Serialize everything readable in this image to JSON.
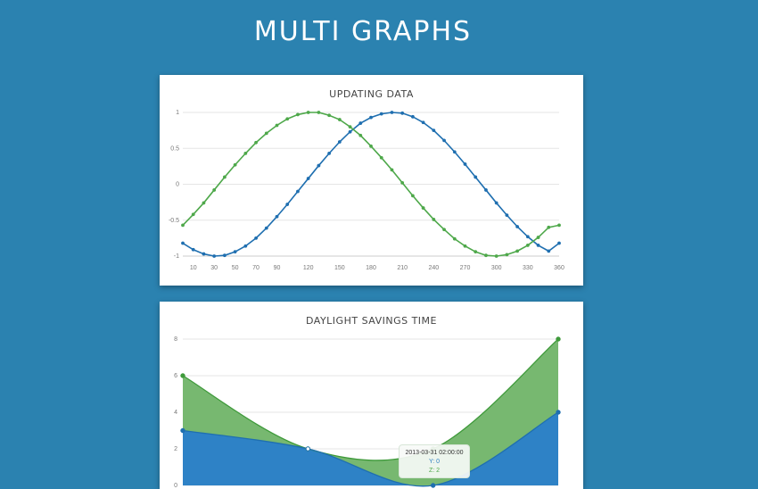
{
  "page": {
    "title": "MULTI GRAPHS"
  },
  "colors": {
    "background": "#2b82b0",
    "blue": "#1f6fb0",
    "green": "#4ea84a",
    "area_blue": "#2e82c6",
    "area_green": "#77b870"
  },
  "chart_data": [
    {
      "type": "line",
      "title": "UPDATING DATA",
      "xlim": [
        0,
        360
      ],
      "ylim": [
        -1,
        1
      ],
      "x_ticks": [
        "10",
        "30",
        "50",
        "70",
        "90",
        "120",
        "150",
        "180",
        "210",
        "240",
        "270",
        "300",
        "330",
        "360"
      ],
      "y_ticks": [
        "1",
        "0.5",
        "0",
        "-0.5",
        "-1"
      ],
      "x": [
        0,
        10,
        20,
        30,
        40,
        50,
        60,
        70,
        80,
        90,
        100,
        110,
        120,
        130,
        140,
        150,
        160,
        170,
        180,
        190,
        200,
        210,
        220,
        230,
        240,
        250,
        260,
        270,
        280,
        290,
        300,
        310,
        320,
        330,
        340,
        350,
        360
      ],
      "series": [
        {
          "color": "#1f6fb0",
          "values": [
            -0.82,
            -0.91,
            -0.97,
            -1.0,
            -0.99,
            -0.94,
            -0.86,
            -0.75,
            -0.61,
            -0.45,
            -0.28,
            -0.1,
            0.08,
            0.26,
            0.43,
            0.59,
            0.73,
            0.85,
            0.93,
            0.98,
            1.0,
            0.99,
            0.94,
            0.86,
            0.75,
            0.61,
            0.45,
            0.28,
            0.1,
            -0.08,
            -0.26,
            -0.43,
            -0.59,
            -0.73,
            -0.85,
            -0.93,
            -0.82
          ]
        },
        {
          "color": "#4ea84a",
          "values": [
            -0.57,
            -0.42,
            -0.26,
            -0.08,
            0.1,
            0.27,
            0.43,
            0.58,
            0.71,
            0.82,
            0.91,
            0.97,
            1.0,
            1.0,
            0.96,
            0.9,
            0.8,
            0.68,
            0.53,
            0.37,
            0.2,
            0.02,
            -0.16,
            -0.33,
            -0.49,
            -0.63,
            -0.76,
            -0.86,
            -0.94,
            -0.99,
            -1.0,
            -0.98,
            -0.93,
            -0.85,
            -0.74,
            -0.6,
            -0.57
          ]
        }
      ]
    },
    {
      "type": "area",
      "title": "DAYLIGHT SAVINGS TIME",
      "ylim": [
        0,
        8
      ],
      "y_ticks": [
        "8",
        "6",
        "4",
        "2",
        "0"
      ],
      "x": [
        0,
        1,
        2,
        3
      ],
      "series": [
        {
          "name": "Y",
          "color": "#2e82c6",
          "values": [
            3,
            2,
            0,
            4
          ]
        },
        {
          "name": "Z",
          "color": "#77b870",
          "values": [
            3,
            0,
            2,
            4
          ]
        }
      ],
      "tooltip": {
        "date": "2013-03-31 02:00:00",
        "y_label": "Y: 0",
        "z_label": "Z: 2"
      }
    }
  ]
}
